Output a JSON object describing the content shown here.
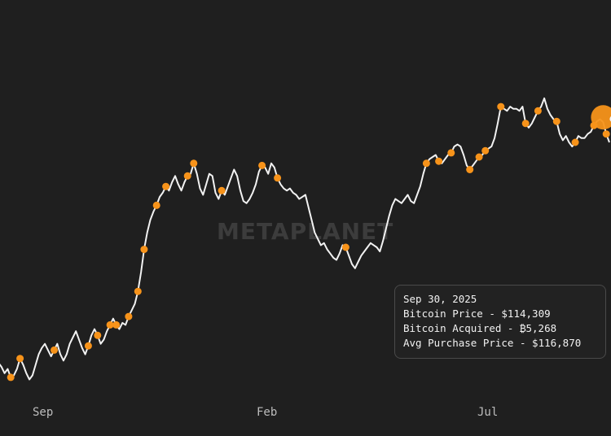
{
  "chart_data": {
    "type": "line",
    "colors": {
      "background": "#1f1f1f",
      "price_line": "#f2f2f2",
      "purchase_marker": "#f7931a",
      "watermark": "#3a3a3a"
    },
    "watermark": "METAPLANET",
    "x_ticks": [
      "Sep",
      "Feb",
      "Jul"
    ],
    "ylim": [
      50000,
      125000
    ],
    "grid": false,
    "series": [
      {
        "values": [
          57000,
          56000,
          54500,
          55500,
          53500,
          54000,
          55500,
          58000,
          56500,
          54500,
          53000,
          54000,
          56500,
          59000,
          60500,
          61500,
          60000,
          58500,
          60000,
          61500,
          59000,
          57500,
          59000,
          61500,
          63000,
          64500,
          62500,
          60500,
          59000,
          61000,
          63500,
          65000,
          63500,
          61500,
          62500,
          64500,
          66000,
          67500,
          66000,
          65000,
          66500,
          66000,
          68000,
          69500,
          71000,
          74000,
          78500,
          84000,
          88000,
          91000,
          93000,
          94500,
          96500,
          97500,
          99000,
          98000,
          100000,
          101500,
          99500,
          98000,
          100000,
          101500,
          102000,
          104500,
          102000,
          98500,
          97000,
          99500,
          102000,
          101500,
          97500,
          96000,
          98000,
          97000,
          99000,
          101000,
          103000,
          101500,
          98000,
          95500,
          95000,
          96000,
          97500,
          99500,
          102500,
          104000,
          103500,
          102000,
          104500,
          103500,
          101000,
          99500,
          98500,
          98000,
          98500,
          97500,
          97000,
          96000,
          96500,
          97000,
          94000,
          91000,
          88000,
          86500,
          85000,
          85500,
          84000,
          83000,
          82000,
          81500,
          83000,
          85000,
          84500,
          82500,
          80500,
          79500,
          81000,
          82500,
          83500,
          84500,
          85500,
          85000,
          84500,
          83500,
          86000,
          89000,
          92000,
          94500,
          96000,
          95500,
          95000,
          96000,
          97000,
          95500,
          95000,
          97000,
          99000,
          102000,
          104500,
          105500,
          106000,
          106500,
          105000,
          104500,
          105500,
          106500,
          107000,
          108500,
          109000,
          108500,
          106500,
          104000,
          103000,
          104000,
          105000,
          106000,
          106500,
          107500,
          108000,
          108500,
          110500,
          114000,
          118000,
          117500,
          117000,
          118000,
          117500,
          117500,
          117000,
          118000,
          114000,
          113000,
          114000,
          115500,
          117000,
          118000,
          120000,
          117500,
          116000,
          115000,
          114500,
          111500,
          110000,
          111000,
          109500,
          108500,
          109500,
          111000,
          110500,
          110500,
          111500,
          112000,
          113500,
          114500,
          115000,
          114309,
          111500,
          109500
        ],
        "markers": [
          {
            "i": 4,
            "v": 54500
          },
          {
            "i": 7,
            "v": 56500
          },
          {
            "i": 18,
            "v": 55500
          },
          {
            "i": 29,
            "v": 59000
          },
          {
            "i": 32,
            "v": 58000
          },
          {
            "i": 36,
            "v": 57000
          },
          {
            "i": 38,
            "v": 61500
          },
          {
            "i": 42,
            "v": 62500
          },
          {
            "i": 45,
            "v": 60500
          },
          {
            "i": 47,
            "v": 62500
          },
          {
            "i": 51,
            "v": 61500
          },
          {
            "i": 54,
            "v": 60000
          },
          {
            "i": 61,
            "v": 64000
          },
          {
            "i": 63,
            "v": 65000
          },
          {
            "i": 72,
            "v": 66000
          },
          {
            "i": 85,
            "v": 87000
          },
          {
            "i": 90,
            "v": 87500
          },
          {
            "i": 112,
            "v": 91000
          },
          {
            "i": 138,
            "v": 93000
          },
          {
            "i": 142,
            "v": 93500
          },
          {
            "i": 146,
            "v": 93000
          },
          {
            "i": 152,
            "v": 91500
          },
          {
            "i": 155,
            "v": 85000
          },
          {
            "i": 157,
            "v": 83500
          },
          {
            "i": 162,
            "v": 80500
          },
          {
            "i": 170,
            "v": 81000
          },
          {
            "i": 174,
            "v": 82500
          },
          {
            "i": 180,
            "v": 81000
          },
          {
            "i": 186,
            "v": 80500
          },
          {
            "i": 192,
            "v": 81000
          },
          {
            "i": 196,
            "v": 83000
          },
          {
            "i": 200,
            "v": 83500
          },
          {
            "i": 204,
            "v": 83000
          },
          {
            "i": 207,
            "v": 84500
          },
          {
            "i": 210,
            "v": 86000
          },
          {
            "i": 215,
            "v": 89000
          },
          {
            "i": 220,
            "v": 91000
          },
          {
            "i": 226,
            "v": 92000
          },
          {
            "i": 230,
            "v": 95000
          },
          {
            "i": 236,
            "v": 97500
          },
          {
            "i": 241,
            "v": 98000
          },
          {
            "i": 250,
            "v": 95500
          },
          {
            "i": 256,
            "v": 99000
          },
          {
            "i": 260,
            "v": 100000
          },
          {
            "i": 264,
            "v": 101500
          },
          {
            "i": 272,
            "v": 101000
          },
          {
            "i": 276,
            "v": 100000
          },
          {
            "i": 280,
            "v": 98000
          }
        ]
      }
    ],
    "tooltip": {
      "date": "Sep 30, 2025",
      "price_line": "Bitcoin Price - $114,309",
      "acquired_line": "Bitcoin Acquired - ₿5,268",
      "avg_line": "Avg Purchase Price - $116,870"
    }
  }
}
